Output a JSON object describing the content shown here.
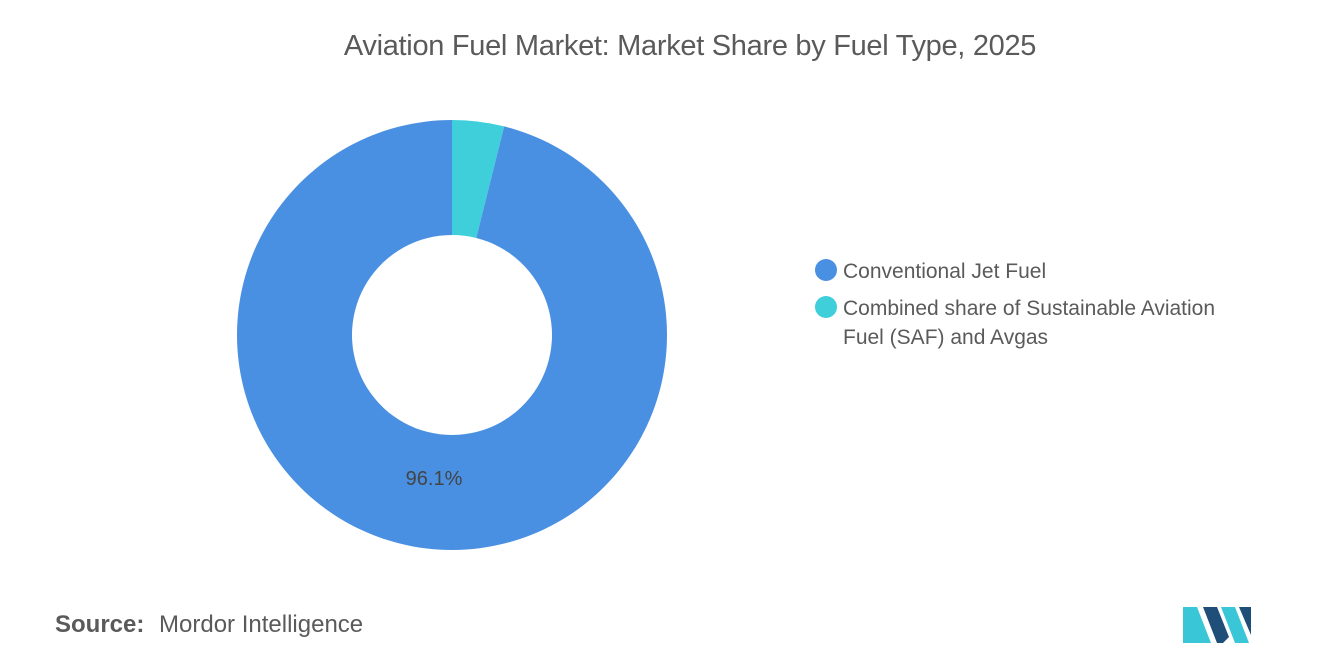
{
  "title": "Aviation Fuel Market: Market Share by Fuel Type, 2025",
  "chart_data": {
    "type": "pie",
    "title": "Aviation Fuel Market: Market Share by Fuel Type, 2025",
    "donut": true,
    "legend_position": "right",
    "categories": [
      "Conventional Jet Fuel",
      "Combined share of Sustainable Aviation Fuel (SAF) and Avgas"
    ],
    "values": [
      96.1,
      3.9
    ],
    "colors": [
      "#4a90e2",
      "#3ecfdb"
    ],
    "data_labels": [
      "96.1%",
      ""
    ]
  },
  "legend": [
    {
      "label": "Conventional Jet Fuel",
      "color": "#4a90e2"
    },
    {
      "label": "Combined share of Sustainable Aviation Fuel (SAF) and Avgas",
      "color": "#3ecfdb"
    }
  ],
  "source": {
    "key": "Source:",
    "value": "Mordor Intelligence"
  },
  "logo": {
    "icon": "mordor-intelligence-logo-icon",
    "colors": [
      "#1f4e79",
      "#39c6d6"
    ]
  }
}
